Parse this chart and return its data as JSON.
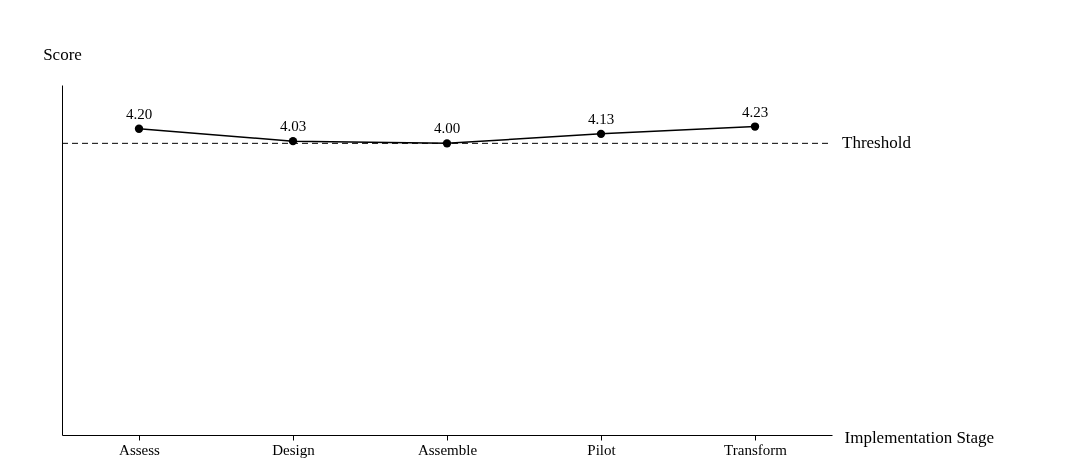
{
  "chart_data": {
    "type": "line",
    "xlabel": "Implementation Stage",
    "ylabel": "Score",
    "categories": [
      "Assess",
      "Design",
      "Assemble",
      "Pilot",
      "Transform"
    ],
    "series": [
      {
        "color": "#000000",
        "values": [
          4.2,
          4.03,
          4.0,
          4.13,
          4.23
        ],
        "value_labels": [
          "4.20",
          "4.03",
          "4.00",
          "4.13",
          "4.23"
        ]
      }
    ],
    "ylim": [
      0,
      4.8
    ],
    "marker": "circle",
    "line_style": "solid",
    "grid": false,
    "ref_lines": [
      {
        "axis": "y",
        "value": 4.0,
        "label": "Threshold",
        "color": "#000000",
        "line_style": "dashed"
      }
    ]
  }
}
